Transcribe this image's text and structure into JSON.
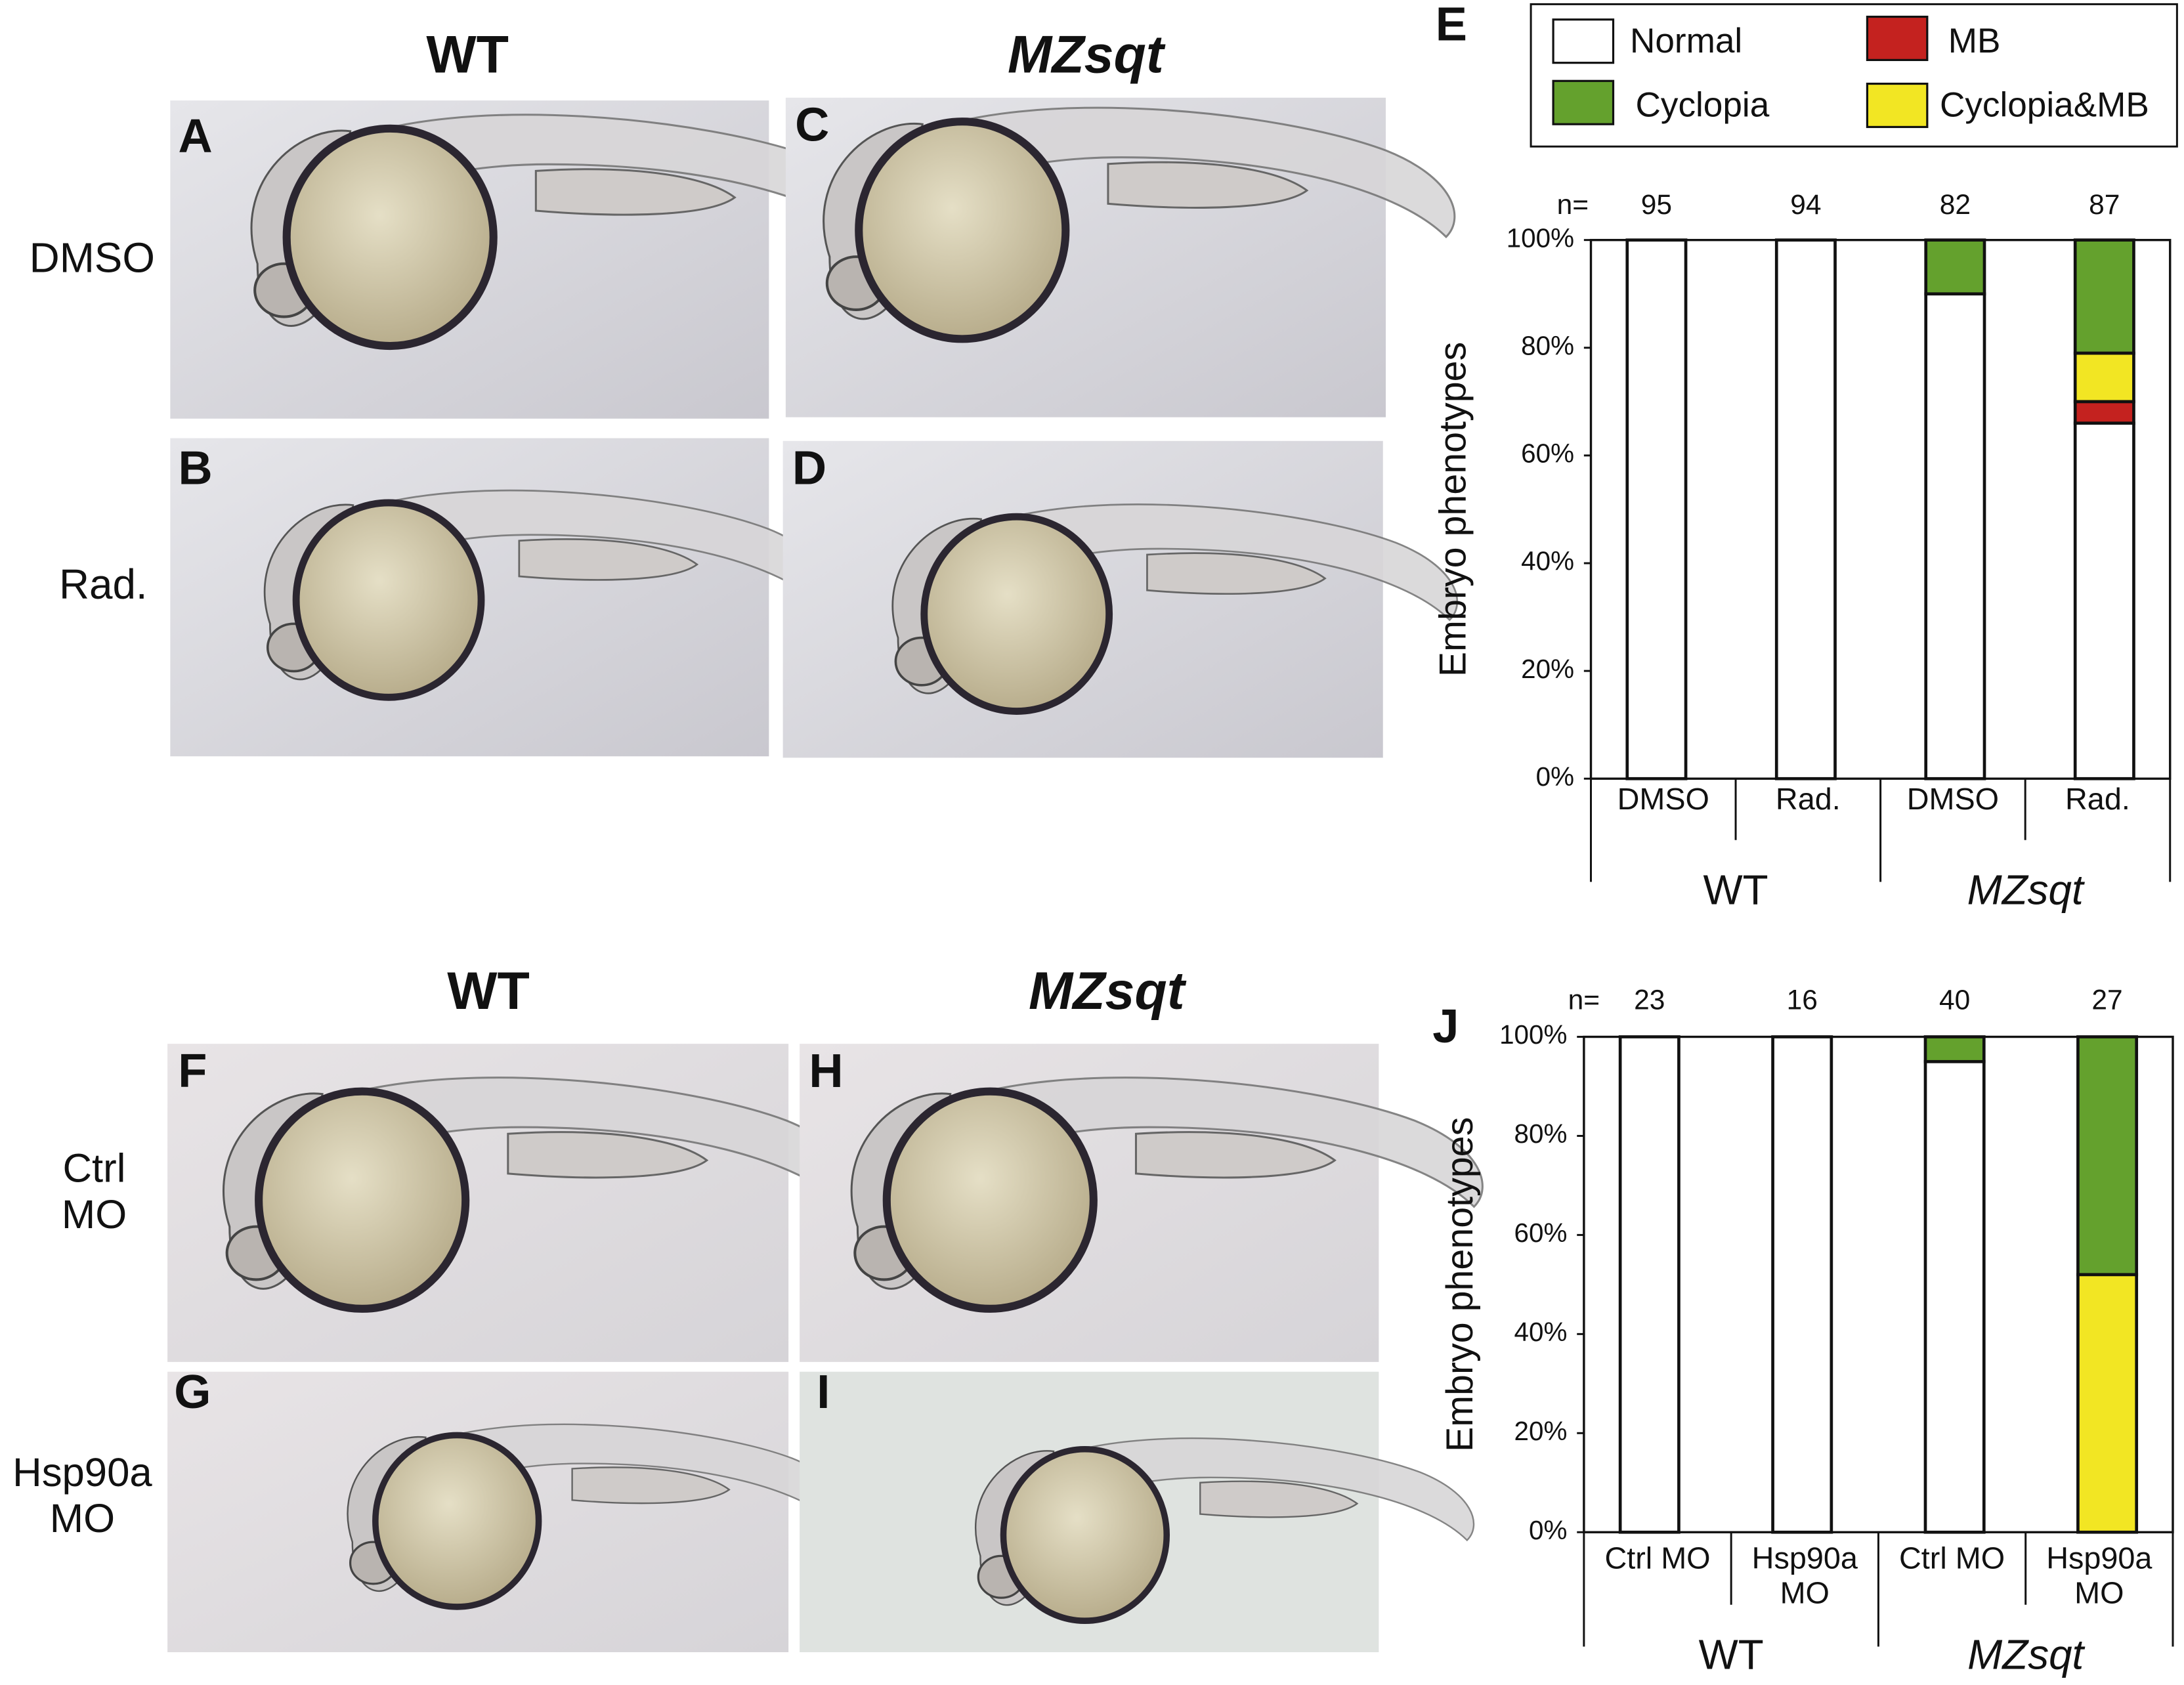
{
  "figure": {
    "top": {
      "col_headers": [
        "WT",
        "MZsqt"
      ],
      "row_labels": [
        "DMSO",
        "Rad."
      ],
      "panels": [
        "A",
        "C",
        "B",
        "D"
      ]
    },
    "bottom": {
      "col_headers": [
        "WT",
        "MZsqt"
      ],
      "row_labels": [
        "Ctrl\nMO",
        "Hsp90a\nMO"
      ],
      "panels": [
        "F",
        "H",
        "G",
        "I"
      ]
    }
  },
  "chart_data": [
    {
      "type": "bar",
      "stacked": true,
      "panel_label": "E",
      "ylabel": "Embryo phenotypes",
      "n_label": "n=",
      "n": [
        95,
        94,
        82,
        87
      ],
      "categories": [
        "DMSO",
        "Rad.",
        "DMSO",
        "Rad."
      ],
      "groups": [
        "WT",
        "MZsqt"
      ],
      "ylim": [
        0,
        100
      ],
      "yticks": [
        {
          "value": 0,
          "label": "0%"
        },
        {
          "value": 20,
          "label": "20%"
        },
        {
          "value": 40,
          "label": "40%"
        },
        {
          "value": 60,
          "label": "60%"
        },
        {
          "value": 80,
          "label": "80%"
        },
        {
          "value": 100,
          "label": "100%"
        }
      ],
      "legend": true,
      "series": [
        {
          "name": "Normal",
          "color": "#ffffff",
          "values": [
            100,
            100,
            90,
            66
          ]
        },
        {
          "name": "MB",
          "color": "#c4221f",
          "values": [
            0,
            0,
            0,
            4
          ]
        },
        {
          "name": "Cyclopia&MB",
          "color": "#f2e623",
          "values": [
            0,
            0,
            0,
            9
          ]
        },
        {
          "name": "Cyclopia",
          "color": "#64a12d",
          "values": [
            0,
            0,
            10,
            21
          ]
        }
      ]
    },
    {
      "type": "bar",
      "stacked": true,
      "panel_label": "J",
      "ylabel": "Embryo phenotypes",
      "n_label": "n=",
      "n": [
        23,
        16,
        40,
        27
      ],
      "categories": [
        "Ctrl MO",
        "Hsp90a\nMO",
        "Ctrl MO",
        "Hsp90a\nMO"
      ],
      "groups": [
        "WT",
        "MZsqt"
      ],
      "ylim": [
        0,
        100
      ],
      "yticks": [
        {
          "value": 0,
          "label": "0%"
        },
        {
          "value": 20,
          "label": "20%"
        },
        {
          "value": 40,
          "label": "40%"
        },
        {
          "value": 60,
          "label": "60%"
        },
        {
          "value": 80,
          "label": "80%"
        },
        {
          "value": 100,
          "label": "100%"
        }
      ],
      "legend": false,
      "series": [
        {
          "name": "Normal",
          "color": "#ffffff",
          "values": [
            100,
            100,
            95,
            0
          ]
        },
        {
          "name": "Cyclopia&MB",
          "color": "#f2e623",
          "values": [
            0,
            0,
            0,
            52
          ]
        },
        {
          "name": "Cyclopia",
          "color": "#64a12d",
          "values": [
            0,
            0,
            5,
            48
          ]
        }
      ]
    }
  ]
}
